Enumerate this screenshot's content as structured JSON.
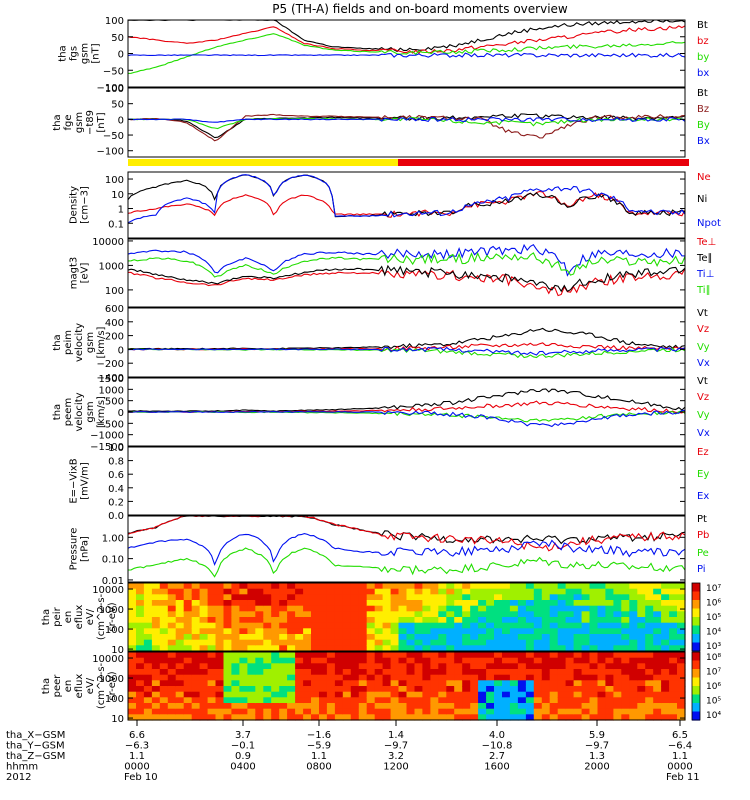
{
  "title": "P5 (TH-A) fields and on-board moments overview",
  "colors": {
    "black": "#000000",
    "red": "#e8000b",
    "green": "#22dd00",
    "blue": "#0010f0",
    "darkred": "#8b1a1a",
    "yellow": "#ffee00",
    "frame": "#000000"
  },
  "chart_data": [
    {
      "type": "line",
      "name": "fgs-gsm",
      "ylabel": [
        "tha",
        "fgs",
        "gsm",
        "[nT]"
      ],
      "ylim": [
        -100,
        100
      ],
      "yticks": [
        "100",
        "50",
        "0",
        "−50",
        "−100"
      ],
      "ytick_values": [
        100,
        50,
        0,
        -50,
        -100
      ],
      "series": [
        {
          "name": "Bt",
          "color_key": "black",
          "values": [
            100,
            100,
            100,
            100,
            100,
            100,
            40,
            20,
            15,
            12,
            14,
            22,
            40,
            60,
            75,
            85,
            90,
            95,
            100,
            100
          ]
        },
        {
          "name": "bz",
          "color_key": "red",
          "values": [
            50,
            40,
            30,
            40,
            60,
            80,
            30,
            15,
            10,
            8,
            6,
            10,
            20,
            30,
            40,
            50,
            60,
            70,
            75,
            80
          ]
        },
        {
          "name": "by",
          "color_key": "green",
          "values": [
            -60,
            -40,
            -10,
            20,
            40,
            60,
            25,
            10,
            6,
            4,
            2,
            4,
            8,
            12,
            16,
            20,
            22,
            26,
            30,
            35
          ]
        },
        {
          "name": "bx",
          "color_key": "blue",
          "values": [
            -5,
            -5,
            -5,
            -5,
            -5,
            -5,
            -5,
            -5,
            -5,
            -5,
            -5,
            -5,
            -5,
            -5,
            -5,
            -5,
            -5,
            -5,
            -5,
            -5
          ]
        }
      ],
      "legend": [
        "Bt",
        "bz",
        "by",
        "bx"
      ]
    },
    {
      "type": "line",
      "name": "fge-gsm-lp",
      "ylabel": [
        "tha",
        "fge",
        "gsm",
        "−t89",
        "[nT]"
      ],
      "ylim": [
        -120,
        100
      ],
      "yticks": [
        "100",
        "50",
        "0",
        "−50",
        "−100"
      ],
      "ytick_values": [
        100,
        50,
        0,
        -50,
        -100
      ],
      "series": [
        {
          "name": "Bt",
          "color_key": "black",
          "values": [
            0,
            2,
            -5,
            -60,
            0,
            3,
            4,
            6,
            5,
            4,
            4,
            5,
            8,
            12,
            10,
            8,
            6,
            5,
            5,
            5
          ]
        },
        {
          "name": "Bz",
          "color_key": "darkred",
          "values": [
            0,
            3,
            -10,
            -70,
            10,
            15,
            10,
            10,
            8,
            6,
            6,
            4,
            2,
            -40,
            -60,
            -20,
            5,
            8,
            8,
            10
          ]
        },
        {
          "name": "By",
          "color_key": "green",
          "values": [
            0,
            0,
            0,
            -30,
            0,
            2,
            2,
            2,
            0,
            0,
            0,
            -5,
            -10,
            -10,
            -15,
            -5,
            0,
            0,
            0,
            0
          ]
        },
        {
          "name": "Bx",
          "color_key": "blue",
          "values": [
            0,
            0,
            0,
            -10,
            0,
            0,
            0,
            0,
            0,
            0,
            0,
            0,
            0,
            0,
            0,
            0,
            0,
            0,
            0,
            0
          ]
        }
      ],
      "legend": [
        "Bt",
        "Bz",
        "By",
        "Bx"
      ]
    },
    {
      "type": "line",
      "name": "density",
      "scale": "log",
      "ylabel": [
        "Density",
        "[cm−3]"
      ],
      "ylim": [
        0.01,
        300
      ],
      "yticks": [
        "100",
        "10",
        "1",
        "0.1"
      ],
      "ytick_values": [
        100,
        10,
        1,
        0.1
      ],
      "series": [
        {
          "name": "Ne",
          "color_key": "red",
          "values": [
            0.5,
            1,
            2,
            0.3,
            8,
            0.1,
            8,
            0.4,
            0.4,
            0.4,
            0.5,
            0.5,
            2,
            3,
            10,
            1,
            8,
            0.5,
            0.5,
            0.5
          ]
        },
        {
          "name": "Ni",
          "color_key": "black",
          "values": [
            4,
            30,
            80,
            0.3,
            200,
            0.2,
            200,
            0.3,
            0.3,
            0.4,
            0.5,
            0.5,
            2,
            3,
            10,
            1,
            8,
            0.5,
            0.5,
            0.5
          ]
        },
        {
          "name": "Npot",
          "color_key": "blue",
          "values": [
            0.1,
            0.4,
            5,
            0.3,
            200,
            0.1,
            200,
            0.3,
            0.3,
            0.4,
            0.5,
            0.5,
            2,
            5,
            20,
            25,
            10,
            1,
            0.5,
            0.5
          ]
        }
      ],
      "legend": [
        "Ne",
        "Ni",
        "Npot"
      ]
    },
    {
      "type": "line",
      "name": "magt3",
      "scale": "log",
      "ylabel": [
        "magt3",
        "[eV]"
      ],
      "ylim": [
        20,
        12000
      ],
      "yticks": [
        "10000",
        "1000",
        "100"
      ],
      "ytick_values": [
        10000,
        1000,
        100
      ],
      "series": [
        {
          "name": "Te⊥",
          "color_key": "red",
          "values": [
            500,
            300,
            200,
            150,
            300,
            250,
            400,
            500,
            500,
            400,
            400,
            400,
            300,
            250,
            100,
            80,
            200,
            300,
            400,
            500
          ]
        },
        {
          "name": "Te∥",
          "color_key": "black",
          "values": [
            700,
            400,
            250,
            180,
            350,
            300,
            500,
            700,
            700,
            600,
            500,
            500,
            400,
            300,
            150,
            100,
            300,
            400,
            500,
            700
          ]
        },
        {
          "name": "Ti⊥",
          "color_key": "blue",
          "values": [
            3000,
            4000,
            3500,
            400,
            2000,
            500,
            3000,
            3500,
            3000,
            3000,
            3000,
            3000,
            3500,
            4000,
            5000,
            500,
            3000,
            3000,
            3000,
            3000
          ]
        },
        {
          "name": "Ti∥",
          "color_key": "green",
          "values": [
            1500,
            2000,
            1500,
            300,
            1000,
            400,
            1500,
            2000,
            1800,
            1800,
            1800,
            1800,
            2000,
            2500,
            2000,
            400,
            1500,
            1500,
            1500,
            1500
          ]
        }
      ],
      "legend": [
        "Te⊥",
        "Te∥",
        "Ti⊥",
        "Ti∥"
      ]
    },
    {
      "type": "line",
      "name": "peim-velocity",
      "ylabel": [
        "tha",
        "peim",
        "velocity",
        "gsm",
        "[km/s]"
      ],
      "ylim": [
        -400,
        600
      ],
      "yticks": [
        "600",
        "400",
        "200",
        "0",
        "−200",
        "−400"
      ],
      "ytick_values": [
        600,
        400,
        200,
        0,
        -200,
        -400
      ],
      "series": [
        {
          "name": "Vt",
          "color_key": "black",
          "values": [
            10,
            10,
            10,
            10,
            15,
            10,
            20,
            20,
            30,
            40,
            60,
            80,
            150,
            200,
            300,
            250,
            200,
            100,
            50,
            30
          ]
        },
        {
          "name": "Vz",
          "color_key": "red",
          "values": [
            0,
            0,
            0,
            0,
            5,
            0,
            5,
            5,
            10,
            10,
            20,
            30,
            50,
            60,
            80,
            60,
            40,
            20,
            10,
            5
          ]
        },
        {
          "name": "Vy",
          "color_key": "green",
          "values": [
            0,
            0,
            0,
            0,
            -5,
            0,
            -5,
            -5,
            -10,
            -10,
            -20,
            -40,
            -60,
            -80,
            -100,
            -80,
            -60,
            -30,
            -10,
            -5
          ]
        },
        {
          "name": "Vx",
          "color_key": "blue",
          "values": [
            0,
            0,
            0,
            0,
            0,
            0,
            0,
            0,
            0,
            0,
            0,
            0,
            -20,
            -40,
            -60,
            -40,
            -20,
            0,
            0,
            0
          ]
        }
      ],
      "legend": [
        "Vt",
        "Vz",
        "Vy",
        "Vx"
      ]
    },
    {
      "type": "line",
      "name": "peem-velocity",
      "ylabel": [
        "tha",
        "peem",
        "velocity",
        "gsm",
        "[km/s]"
      ],
      "ylim": [
        -1500,
        1500
      ],
      "yticks": [
        "1500",
        "1000",
        "500",
        "0",
        "−500",
        "−1000",
        "−1500"
      ],
      "ytick_values": [
        1500,
        1000,
        500,
        0,
        -500,
        -1000,
        -1500
      ],
      "series": [
        {
          "name": "Vt",
          "color_key": "black",
          "values": [
            40,
            40,
            40,
            40,
            80,
            40,
            80,
            100,
            150,
            200,
            300,
            400,
            600,
            800,
            1000,
            900,
            700,
            500,
            300,
            150
          ]
        },
        {
          "name": "Vz",
          "color_key": "red",
          "values": [
            0,
            0,
            0,
            0,
            30,
            0,
            30,
            40,
            60,
            80,
            120,
            150,
            250,
            300,
            400,
            350,
            250,
            150,
            80,
            40
          ]
        },
        {
          "name": "Vy",
          "color_key": "green",
          "values": [
            0,
            0,
            0,
            0,
            -20,
            0,
            -20,
            -30,
            -50,
            -80,
            -100,
            -150,
            -200,
            -300,
            -400,
            -300,
            -200,
            -100,
            -50,
            -20
          ]
        },
        {
          "name": "Vx",
          "color_key": "blue",
          "values": [
            0,
            0,
            0,
            0,
            0,
            0,
            0,
            0,
            0,
            -20,
            -50,
            -100,
            -200,
            -400,
            -600,
            -500,
            -300,
            -150,
            -50,
            0
          ]
        }
      ],
      "legend": [
        "Vt",
        "Vz",
        "Vy",
        "Vx"
      ]
    },
    {
      "type": "line",
      "name": "e-field",
      "ylabel": [
        "E=−VixB",
        "[mV/m]"
      ],
      "ylim": [
        0,
        1
      ],
      "yticks": [
        "1.0",
        "0.8",
        "0.6",
        "0.4",
        "0.2",
        "0.0"
      ],
      "ytick_values": [
        1.0,
        0.8,
        0.6,
        0.4,
        0.2,
        0.0
      ],
      "series": [],
      "legend": [
        "Ez",
        "Ey",
        "Ex"
      ]
    },
    {
      "type": "line",
      "name": "pressure",
      "scale": "log",
      "ylabel": [
        "Pressure",
        "[nPa]"
      ],
      "ylim": [
        0.008,
        10
      ],
      "yticks": [
        "1.00",
        "0.10",
        "0.01"
      ],
      "ytick_values": [
        1,
        0.1,
        0.01
      ],
      "series": [
        {
          "name": "Pt",
          "color_key": "black",
          "values": [
            1.5,
            3,
            10,
            10,
            10,
            10,
            10,
            4,
            2,
            1.2,
            1,
            0.9,
            0.8,
            0.8,
            0.8,
            0.8,
            0.9,
            1,
            1.1,
            1.3
          ]
        },
        {
          "name": "Pb",
          "color_key": "red",
          "values": [
            1.5,
            3,
            10,
            10,
            10,
            10,
            10,
            4,
            2,
            1.2,
            1,
            0.9,
            0.7,
            0.6,
            0.3,
            0.5,
            0.8,
            1,
            1.1,
            1.3
          ]
        },
        {
          "name": "Pe",
          "color_key": "green",
          "values": [
            0.03,
            0.05,
            0.1,
            0.01,
            0.3,
            0.01,
            0.3,
            0.05,
            0.04,
            0.03,
            0.03,
            0.03,
            0.04,
            0.05,
            0.08,
            0.05,
            0.05,
            0.04,
            0.04,
            0.04
          ]
        },
        {
          "name": "Pi",
          "color_key": "blue",
          "values": [
            0.3,
            0.6,
            0.8,
            0.02,
            1.5,
            0.02,
            1.5,
            0.3,
            0.2,
            0.2,
            0.2,
            0.2,
            0.25,
            0.3,
            0.6,
            0.3,
            0.3,
            0.2,
            0.2,
            0.2
          ]
        }
      ],
      "legend": [
        "Pt",
        "Pb",
        "Pe",
        "Pi"
      ]
    },
    {
      "type": "heatmap",
      "name": "peir-eflux",
      "ylabel": [
        "tha",
        "peir",
        "en",
        "eflux",
        "eV/",
        "(cm^2-s-",
        "sr-eV)"
      ],
      "ylim": [
        8,
        20000
      ],
      "yticks": [
        "10000",
        "1000",
        "100",
        "10"
      ],
      "ytick_values": [
        10000,
        1000,
        100,
        10
      ],
      "colorbar_ticks": [
        "10⁷",
        "10⁶",
        "10⁵",
        "10⁴",
        "10³"
      ]
    },
    {
      "type": "heatmap",
      "name": "peer-eflux",
      "ylabel": [
        "tha",
        "peer",
        "en",
        "eflux",
        "eV/",
        "(cm^2-s-",
        "sr-eV)"
      ],
      "ylim": [
        8,
        20000
      ],
      "yticks": [
        "10000",
        "1000",
        "100",
        "10"
      ],
      "ytick_values": [
        10000,
        1000,
        100,
        10
      ],
      "colorbar_ticks": [
        "10⁸",
        "10⁷",
        "10⁶",
        "10⁵",
        "10⁴"
      ]
    }
  ],
  "axis": {
    "rows": [
      {
        "label": "tha_X−GSM",
        "values": [
          "6.6",
          "3.7",
          "−1.6",
          "1.4",
          "4.0",
          "5.9",
          "6.5"
        ]
      },
      {
        "label": "tha_Y−GSM",
        "values": [
          "−6.3",
          "−0.1",
          "−5.9",
          "−9.7",
          "−10.8",
          "−9.7",
          "−6.4"
        ]
      },
      {
        "label": "tha_Z−GSM",
        "values": [
          "1.1",
          "0.9",
          "1.1",
          "3.2",
          "2.7",
          "1.3",
          "1.1"
        ]
      },
      {
        "label": "hhmm",
        "values": [
          "0000",
          "0400",
          "0800",
          "1200",
          "1600",
          "2000",
          "0000"
        ]
      }
    ],
    "year_label": "2012",
    "date_start": "Feb 10",
    "date_end": "Feb 11"
  }
}
